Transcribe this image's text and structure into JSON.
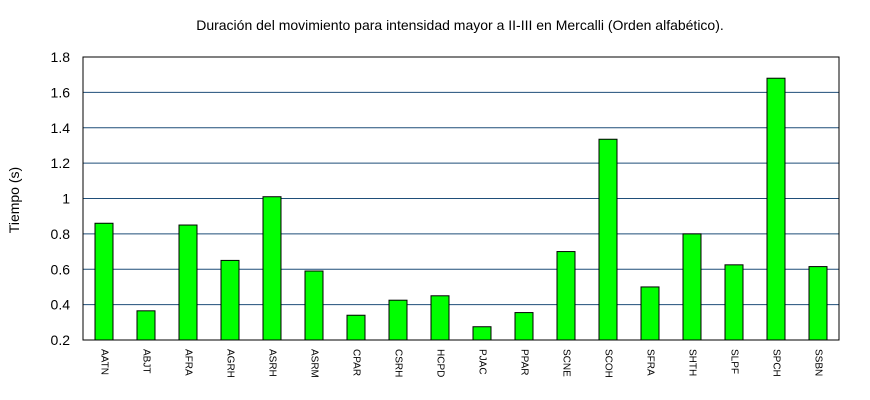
{
  "chart_data": {
    "type": "bar",
    "title": "Duración del movimiento para intensidad mayor a II-III en Mercalli (Orden alfabético).",
    "xlabel": "",
    "ylabel": "Tiempo (s)",
    "ylim": [
      0.2,
      1.8
    ],
    "yticks": [
      "0.2",
      "0.4",
      "0.6",
      "0.8",
      "1",
      "1.2",
      "1.4",
      "1.6",
      "1.8"
    ],
    "grid": true,
    "categories": [
      "AATN",
      "ABJT",
      "AFRA",
      "AGRH",
      "ASRH",
      "ASRM",
      "CPAR",
      "CSRH",
      "HCPD",
      "PJAC",
      "PPAR",
      "SCNE",
      "SCOH",
      "SFRA",
      "SHTH",
      "SLPF",
      "SPCH",
      "SSBN"
    ],
    "values": [
      0.86,
      0.365,
      0.85,
      0.65,
      1.01,
      0.59,
      0.34,
      0.425,
      0.45,
      0.275,
      0.355,
      0.7,
      1.335,
      0.5,
      0.8,
      0.625,
      1.68,
      0.615
    ],
    "colors": {
      "bar": "#00ff00",
      "grid": "#1f4e79",
      "border": "#000000"
    }
  }
}
